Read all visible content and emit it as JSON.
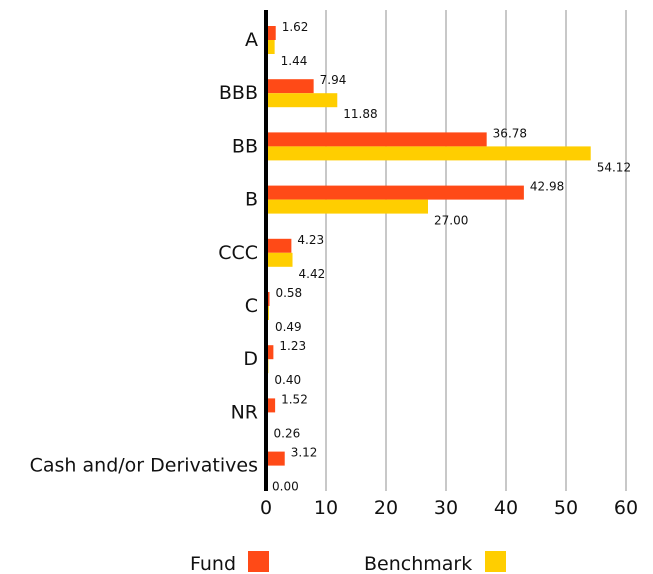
{
  "chart_data": {
    "type": "bar",
    "orientation": "horizontal",
    "categories": [
      "A",
      "BBB",
      "BB",
      "B",
      "CCC",
      "C",
      "D",
      "NR",
      "Cash and/or Derivatives"
    ],
    "series": [
      {
        "name": "Fund",
        "color": "#FF4A17",
        "values": [
          1.62,
          7.94,
          36.78,
          42.98,
          4.23,
          0.58,
          1.23,
          1.52,
          3.12
        ],
        "labels": [
          "1.62",
          "7.94",
          "36.78",
          "42.98",
          "4.23",
          "0.58",
          "1.23",
          "1.52",
          "3.12"
        ]
      },
      {
        "name": "Benchmark",
        "color": "#FFCE00",
        "values": [
          1.44,
          11.88,
          54.12,
          27.0,
          4.42,
          0.49,
          0.4,
          0.26,
          0.0
        ],
        "labels": [
          "1.44",
          "11.88",
          "54.12",
          "27.00",
          "4.42",
          "0.49",
          "0.40",
          "0.26",
          "0.00"
        ]
      }
    ],
    "xlim": [
      0,
      60
    ],
    "xticks": [
      "0",
      "10",
      "20",
      "30",
      "40",
      "50",
      "60"
    ],
    "grid": "vertical",
    "legend": "bottom",
    "title": "",
    "xlabel": "",
    "ylabel": ""
  }
}
